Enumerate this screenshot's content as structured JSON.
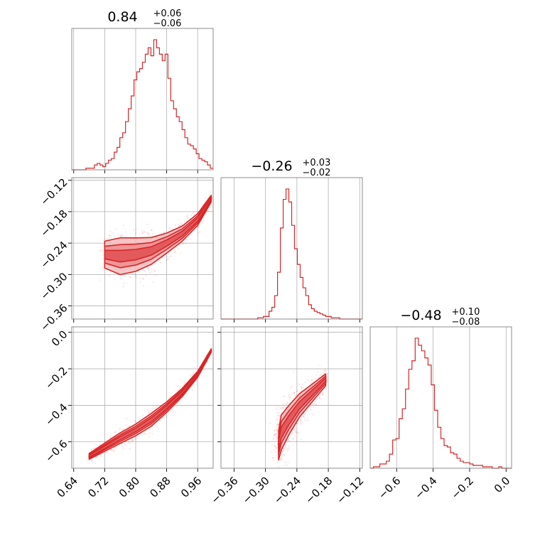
{
  "chart_data": {
    "type": "corner",
    "color": "#d62728",
    "fill_color": "#f4b8b9",
    "grid": true,
    "parameters": [
      {
        "index": 0,
        "title": {
          "value": "0.84",
          "plus": "+0.06",
          "minus": "−0.06"
        },
        "range": [
          0.635,
          1.0
        ],
        "ticks": [
          0.64,
          0.72,
          0.8,
          0.88,
          0.96
        ],
        "tick_labels": [
          "0.64",
          "0.72",
          "0.80",
          "0.88",
          "0.96"
        ]
      },
      {
        "index": 1,
        "title": {
          "value": "−0.26",
          "plus": "+0.03",
          "minus": "−0.02"
        },
        "range": [
          -0.385,
          -0.115
        ],
        "ticks": [
          -0.36,
          -0.3,
          -0.24,
          -0.18,
          -0.12
        ],
        "tick_labels": [
          "−0.36",
          "−0.30",
          "−0.24",
          "−0.18",
          "−0.12"
        ]
      },
      {
        "index": 2,
        "title": {
          "value": "−0.48",
          "plus": "+0.10",
          "minus": "−0.08"
        },
        "range": [
          -0.745,
          0.03
        ],
        "ticks": [
          -0.6,
          -0.4,
          -0.2,
          0.0
        ],
        "tick_labels": [
          "−0.6",
          "−0.4",
          "−0.2",
          "0.0"
        ]
      }
    ],
    "histograms": [
      {
        "param": 0,
        "x0": 0.635,
        "x1": 1.0,
        "counts": [
          0,
          0,
          0,
          0,
          0,
          1,
          1,
          1,
          3,
          4,
          3,
          2,
          4,
          6,
          7,
          11,
          14,
          20,
          23,
          30,
          38,
          46,
          56,
          61,
          63,
          67,
          72,
          76,
          71,
          81,
          76,
          72,
          68,
          72,
          57,
          43,
          38,
          33,
          30,
          25,
          20,
          16,
          15,
          13,
          10,
          7,
          6,
          5,
          3,
          1
        ]
      },
      {
        "param": 1,
        "x0": -0.385,
        "x1": -0.115,
        "counts": [
          0,
          0,
          0,
          0,
          0,
          0,
          0,
          0,
          0,
          0,
          0,
          0,
          0,
          1,
          1,
          2,
          2,
          6,
          9,
          18,
          36,
          70,
          92,
          100,
          90,
          72,
          54,
          42,
          32,
          24,
          18,
          11,
          8,
          6,
          5,
          4,
          3,
          2,
          2,
          1,
          1,
          1,
          0,
          0,
          0,
          0,
          0,
          0,
          0,
          0
        ]
      },
      {
        "param": 2,
        "x0": -0.745,
        "x1": 0.03,
        "counts": [
          0,
          1,
          1,
          3,
          3,
          5,
          10,
          20,
          21,
          35,
          42,
          56,
          70,
          76,
          92,
          87,
          83,
          78,
          73,
          59,
          41,
          29,
          21,
          16,
          15,
          11,
          10,
          7,
          5,
          4,
          4,
          3,
          2,
          2,
          2,
          1,
          1,
          1,
          0,
          0,
          1,
          0,
          0,
          0
        ]
      }
    ],
    "density_ridges": [
      {
        "x_param": 0,
        "y_param": 1,
        "points": [
          [
            0.72,
            -0.262
          ],
          [
            0.76,
            -0.265
          ],
          [
            0.8,
            -0.262
          ],
          [
            0.84,
            -0.255
          ],
          [
            0.88,
            -0.24
          ],
          [
            0.92,
            -0.222
          ],
          [
            0.96,
            -0.195
          ],
          [
            0.995,
            -0.155
          ]
        ],
        "widths": [
          0.016,
          0.022,
          0.02,
          0.016,
          0.012,
          0.009,
          0.007,
          0.004
        ]
      },
      {
        "x_param": 0,
        "y_param": 2,
        "points": [
          [
            0.68,
            -0.68
          ],
          [
            0.72,
            -0.63
          ],
          [
            0.76,
            -0.58
          ],
          [
            0.8,
            -0.535
          ],
          [
            0.84,
            -0.48
          ],
          [
            0.88,
            -0.41
          ],
          [
            0.92,
            -0.33
          ],
          [
            0.96,
            -0.23
          ],
          [
            0.995,
            -0.1
          ]
        ],
        "widths": [
          0.01,
          0.014,
          0.018,
          0.02,
          0.022,
          0.018,
          0.014,
          0.01,
          0.006
        ]
      },
      {
        "x_param": 1,
        "y_param": 2,
        "points": [
          [
            -0.275,
            -0.62
          ],
          [
            -0.27,
            -0.55
          ],
          [
            -0.255,
            -0.48
          ],
          [
            -0.235,
            -0.4
          ],
          [
            -0.21,
            -0.33
          ],
          [
            -0.185,
            -0.26
          ]
        ],
        "widths": [
          0.05,
          0.06,
          0.05,
          0.04,
          0.03,
          0.02
        ]
      }
    ]
  }
}
